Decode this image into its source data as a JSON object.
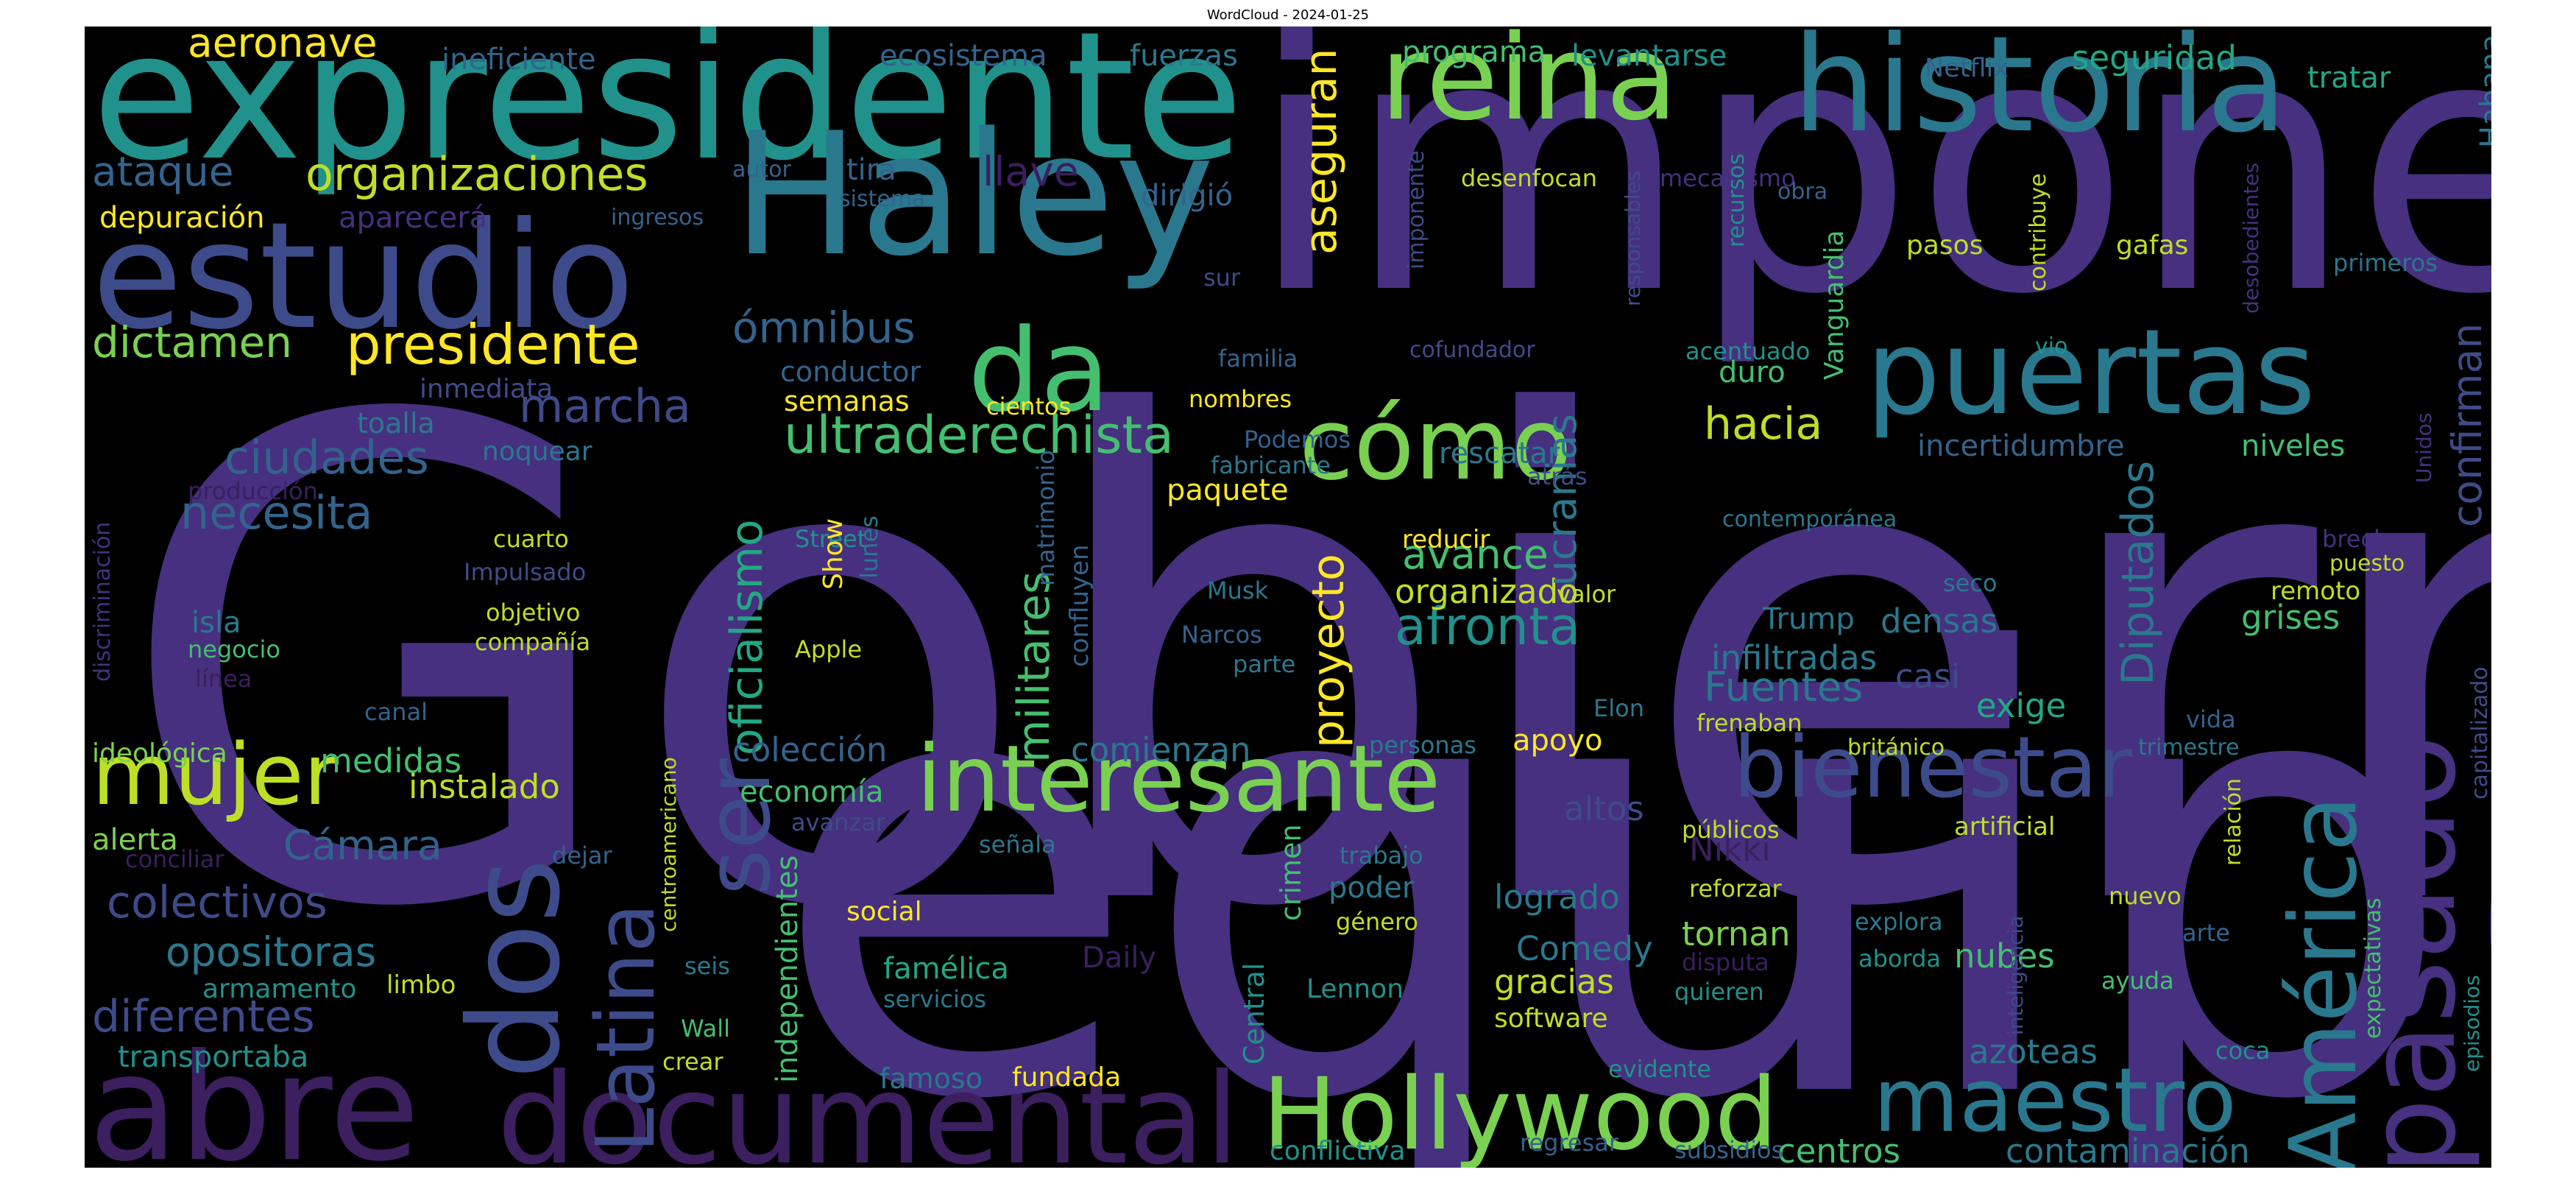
{
  "title": "WordCloud - 2024-01-25",
  "palette": {
    "background": "#000000",
    "dark_purple": "#3b1f5f",
    "purple": "#46307f",
    "indigo": "#3e4b8a",
    "blue": "#33638d",
    "teal_blue": "#2a788e",
    "teal": "#21918c",
    "green_teal": "#22a884",
    "green": "#44bf70",
    "light_green": "#7ad151",
    "yellow_green": "#bddf26",
    "yellow": "#fde725"
  },
  "words": [
    {
      "text": "Gobierno",
      "color": "#46307f"
    },
    {
      "text": "equipo",
      "color": "#46307f"
    },
    {
      "text": "impone",
      "color": "#46307f"
    },
    {
      "text": "expresidente",
      "color": "#21918c"
    },
    {
      "text": "Haley",
      "color": "#2a788e"
    },
    {
      "text": "estudio",
      "color": "#3e4b8a"
    },
    {
      "text": "historia",
      "color": "#2a788e"
    },
    {
      "text": "reina",
      "color": "#7ad151"
    },
    {
      "text": "puertas",
      "color": "#2a788e"
    },
    {
      "text": "documental",
      "color": "#3b1f5f"
    },
    {
      "text": "abre",
      "color": "#3b1f5f"
    },
    {
      "text": "dos",
      "color": "#3e4b8a"
    },
    {
      "text": "da",
      "color": "#44bf70"
    },
    {
      "text": "cómo",
      "color": "#7ad151"
    },
    {
      "text": "Hollywood",
      "color": "#7ad151"
    },
    {
      "text": "maestro",
      "color": "#2a788e"
    },
    {
      "text": "pasado",
      "color": "#46307f"
    },
    {
      "text": "América",
      "color": "#2a788e"
    },
    {
      "text": "bienestar",
      "color": "#3e4b8a"
    },
    {
      "text": "interesante",
      "color": "#7ad151"
    },
    {
      "text": "mujer",
      "color": "#bddf26"
    },
    {
      "text": "Latina",
      "color": "#3e4b8a"
    },
    {
      "text": "ser",
      "color": "#3e4b8a"
    },
    {
      "text": "presidente",
      "color": "#fde725"
    },
    {
      "text": "organizaciones",
      "color": "#bddf26"
    },
    {
      "text": "ultraderechista",
      "color": "#44bf70"
    },
    {
      "text": "afronta",
      "color": "#21918c"
    },
    {
      "text": "marcha",
      "color": "#3e4b8a"
    },
    {
      "text": "ciudades",
      "color": "#33638d"
    },
    {
      "text": "necesita",
      "color": "#33638d"
    },
    {
      "text": "dictamen",
      "color": "#7ad151"
    },
    {
      "text": "ómnibus",
      "color": "#33638d"
    },
    {
      "text": "ataque",
      "color": "#33638d"
    },
    {
      "text": "aeronave",
      "color": "#fde725"
    },
    {
      "text": "depuración",
      "color": "#fde725"
    },
    {
      "text": "aparecerá",
      "color": "#46307f"
    },
    {
      "text": "llave",
      "color": "#3b1f5f"
    },
    {
      "text": "tira",
      "color": "#33638d"
    },
    {
      "text": "dirigió",
      "color": "#33638d"
    },
    {
      "text": "asegu­ran",
      "color": "#fde725"
    },
    {
      "text": "hacia",
      "color": "#bddf26"
    },
    {
      "text": "avance",
      "color": "#44bf70"
    },
    {
      "text": "organizado",
      "color": "#bddf26"
    },
    {
      "text": "Fuentes",
      "color": "#2a788e"
    },
    {
      "text": "Diputados",
      "color": "#2a788e"
    },
    {
      "text": "confirman",
      "color": "#3e4b8a"
    },
    {
      "text": "colectivos",
      "color": "#3e4b8a"
    },
    {
      "text": "opositoras",
      "color": "#2a788e"
    },
    {
      "text": "diferentes",
      "color": "#3e4b8a"
    },
    {
      "text": "Cámara",
      "color": "#33638d"
    },
    {
      "text": "medidas",
      "color": "#44bf70"
    },
    {
      "text": "instalado",
      "color": "#bddf26"
    },
    {
      "text": "alerta",
      "color": "#7ad151"
    },
    {
      "text": "oficialismo",
      "color": "#22a884"
    },
    {
      "text": "militares",
      "color": "#44bf70"
    },
    {
      "text": "proyecto",
      "color": "#fde725"
    },
    {
      "text": "ucranias",
      "color": "#2a788e"
    },
    {
      "text": "independientes",
      "color": "#44bf70"
    },
    {
      "text": "colección",
      "color": "#33638d"
    },
    {
      "text": "economía",
      "color": "#44bf70"
    },
    {
      "text": "comienzan",
      "color": "#2a788e"
    },
    {
      "text": "apoyo",
      "color": "#fde725"
    },
    {
      "text": "altos",
      "color": "#3e4b8a"
    },
    {
      "text": "Nikki",
      "color": "#3b1f5f"
    },
    {
      "text": "logrado",
      "color": "#2a788e"
    },
    {
      "text": "Comedy",
      "color": "#2a788e"
    },
    {
      "text": "tornan",
      "color": "#7ad151"
    },
    {
      "text": "gracias",
      "color": "#bddf26"
    },
    {
      "text": "nubes",
      "color": "#44bf70"
    },
    {
      "text": "azoteas",
      "color": "#2a788e"
    },
    {
      "text": "centros",
      "color": "#44bf70"
    },
    {
      "text": "contaminación",
      "color": "#2a788e"
    },
    {
      "text": "infiltradas",
      "color": "#2a788e"
    },
    {
      "text": "densas",
      "color": "#2a788e"
    },
    {
      "text": "Trump",
      "color": "#2a788e"
    },
    {
      "text": "exige",
      "color": "#22a884"
    },
    {
      "text": "casi",
      "color": "#3e4b8a"
    },
    {
      "text": "grises",
      "color": "#44bf70"
    },
    {
      "text": "niveles",
      "color": "#44bf70"
    },
    {
      "text": "incertidumbre",
      "color": "#33638d"
    },
    {
      "text": "seguridad",
      "color": "#22a884"
    },
    {
      "text": "tratar",
      "color": "#22a884"
    },
    {
      "text": "Habana",
      "color": "#2a788e"
    },
    {
      "text": "levantarse",
      "color": "#21918c"
    },
    {
      "text": "programa",
      "color": "#44bf70"
    },
    {
      "text": "fuerzas",
      "color": "#2a788e"
    },
    {
      "text": "ecosistema",
      "color": "#33638d"
    },
    {
      "text": "ineficiente",
      "color": "#33638d"
    },
    {
      "text": "Netflix",
      "color": "#33638d"
    },
    {
      "text": "semanas",
      "color": "#fde725"
    },
    {
      "text": "conductor",
      "color": "#33638d"
    },
    {
      "text": "toalla",
      "color": "#2a788e"
    },
    {
      "text": "noquear",
      "color": "#2a788e"
    },
    {
      "text": "inmediata",
      "color": "#3e4b8a"
    },
    {
      "text": "paquete",
      "color": "#fde725"
    },
    {
      "text": "rescatar",
      "color": "#2a788e"
    },
    {
      "text": "duro",
      "color": "#44bf70"
    },
    {
      "text": "famélica",
      "color": "#22a884"
    },
    {
      "text": "Daily",
      "color": "#3b1f5f"
    },
    {
      "text": "poder",
      "color": "#2a788e"
    },
    {
      "text": "armamento",
      "color": "#21918c"
    },
    {
      "text": "transportaba",
      "color": "#21918c"
    },
    {
      "text": "famoso",
      "color": "#2a788e"
    },
    {
      "text": "fundada",
      "color": "#fde725"
    },
    {
      "text": "social",
      "color": "#fde725"
    },
    {
      "text": "crimen",
      "color": "#44bf70"
    },
    {
      "text": "Central",
      "color": "#21918c"
    },
    {
      "text": "conflictiva",
      "color": "#21918c"
    },
    {
      "text": "software",
      "color": "#bddf26"
    },
    {
      "text": "Lennon",
      "color": "#21918c"
    },
    {
      "text": "género",
      "color": "#bddf26"
    },
    {
      "text": "trabajo",
      "color": "#2a788e"
    },
    {
      "text": "servicios",
      "color": "#2a788e"
    },
    {
      "text": "limbo",
      "color": "#bddf26"
    },
    {
      "text": "seis",
      "color": "#2a788e"
    },
    {
      "text": "Wall",
      "color": "#44bf70"
    },
    {
      "text": "crear",
      "color": "#bddf26"
    },
    {
      "text": "avanzar",
      "color": "#3e4b8a"
    },
    {
      "text": "dejar",
      "color": "#33638d"
    },
    {
      "text": "conciliar",
      "color": "#3b1f5f"
    },
    {
      "text": "ideológica",
      "color": "#7ad151"
    },
    {
      "text": "canal",
      "color": "#33638d"
    },
    {
      "text": "señala",
      "color": "#2a788e"
    },
    {
      "text": "personas",
      "color": "#2a788e"
    },
    {
      "text": "Elon",
      "color": "#2a788e"
    },
    {
      "text": "valor",
      "color": "#bddf26"
    },
    {
      "text": "parte",
      "color": "#2a788e"
    },
    {
      "text": "Narcos",
      "color": "#33638d"
    },
    {
      "text": "Musk",
      "color": "#2a788e"
    },
    {
      "text": "reducir",
      "color": "#fde725"
    },
    {
      "text": "fabricante",
      "color": "#2a788e"
    },
    {
      "text": "atrás",
      "color": "#3e4b8a"
    },
    {
      "text": "Podemos",
      "color": "#33638d"
    },
    {
      "text": "nombres",
      "color": "#fde725"
    },
    {
      "text": "cientos",
      "color": "#fde725"
    },
    {
      "text": "familia",
      "color": "#33638d"
    },
    {
      "text": "sur",
      "color": "#3e4b8a"
    },
    {
      "text": "cofundador",
      "color": "#3e4b8a"
    },
    {
      "text": "desenfocan",
      "color": "#bddf26"
    },
    {
      "text": "mecanismo",
      "color": "#46307f"
    },
    {
      "text": "autor",
      "color": "#33638d"
    },
    {
      "text": "sistema",
      "color": "#33638d"
    },
    {
      "text": "ingresos",
      "color": "#33638d"
    },
    {
      "text": "obra",
      "color": "#33638d"
    },
    {
      "text": "pasos",
      "color": "#bddf26"
    },
    {
      "text": "gafas",
      "color": "#bddf26"
    },
    {
      "text": "primeros",
      "color": "#2a788e"
    },
    {
      "text": "acentuado",
      "color": "#21918c"
    },
    {
      "text": "vio",
      "color": "#21918c"
    },
    {
      "text": "contemporánea",
      "color": "#2a788e"
    },
    {
      "text": "seco",
      "color": "#2a788e"
    },
    {
      "text": "brecha",
      "color": "#46307f"
    },
    {
      "text": "puesto",
      "color": "#bddf26"
    },
    {
      "text": "remoto",
      "color": "#bddf26"
    },
    {
      "text": "producción",
      "color": "#3b1f5f"
    },
    {
      "text": "cuarto",
      "color": "#bddf26"
    },
    {
      "text": "Impulsado",
      "color": "#3e4b8a"
    },
    {
      "text": "objetivo",
      "color": "#bddf26"
    },
    {
      "text": "compañía",
      "color": "#bddf26"
    },
    {
      "text": "isla",
      "color": "#2a788e"
    },
    {
      "text": "negocio",
      "color": "#44bf70"
    },
    {
      "text": "línea",
      "color": "#3b1f5f"
    },
    {
      "text": "Street",
      "color": "#21918c"
    },
    {
      "text": "Apple",
      "color": "#bddf26"
    },
    {
      "text": "frenaban",
      "color": "#bddf26"
    },
    {
      "text": "británico",
      "color": "#bddf26"
    },
    {
      "text": "vida",
      "color": "#33638d"
    },
    {
      "text": "trimestre",
      "color": "#2a788e"
    },
    {
      "text": "públicos",
      "color": "#bddf26"
    },
    {
      "text": "artificial",
      "color": "#bddf26"
    },
    {
      "text": "reforzar",
      "color": "#bddf26"
    },
    {
      "text": "nuevo",
      "color": "#bddf26"
    },
    {
      "text": "explora",
      "color": "#2a788e"
    },
    {
      "text": "aborda",
      "color": "#21918c"
    },
    {
      "text": "arte",
      "color": "#33638d"
    },
    {
      "text": "disputa",
      "color": "#3b1f5f"
    },
    {
      "text": "quieren",
      "color": "#21918c"
    },
    {
      "text": "ayuda",
      "color": "#44bf70"
    },
    {
      "text": "evidente",
      "color": "#21918c"
    },
    {
      "text": "regresar",
      "color": "#33638d"
    },
    {
      "text": "subsidios",
      "color": "#33638d"
    },
    {
      "text": "coca",
      "color": "#21918c"
    },
    {
      "text": "Show",
      "color": "#fde725"
    },
    {
      "text": "lunes",
      "color": "#2a788e"
    },
    {
      "text": "matrimonio",
      "color": "#33638d"
    },
    {
      "text": "confluyen",
      "color": "#33638d"
    },
    {
      "text": "imponente",
      "color": "#3e4b8a"
    },
    {
      "text": "responsables",
      "color": "#3e4b8a"
    },
    {
      "text": "recursos",
      "color": "#21918c"
    },
    {
      "text": "Vanguardia",
      "color": "#44bf70"
    },
    {
      "text": "contribuye",
      "color": "#bddf26"
    },
    {
      "text": "desobedientes",
      "color": "#46307f"
    },
    {
      "text": "Unidos",
      "color": "#46307f"
    },
    {
      "text": "discriminación",
      "color": "#46307f"
    },
    {
      "text": "centroamericano",
      "color": "#bddf26"
    },
    {
      "text": "relación",
      "color": "#bddf26"
    },
    {
      "text": "inteligencia",
      "color": "#3e4b8a"
    },
    {
      "text": "expectativas",
      "color": "#44bf70"
    },
    {
      "text": "episodios",
      "color": "#21918c"
    },
    {
      "text": "capitalizado",
      "color": "#3e4b8a"
    }
  ]
}
